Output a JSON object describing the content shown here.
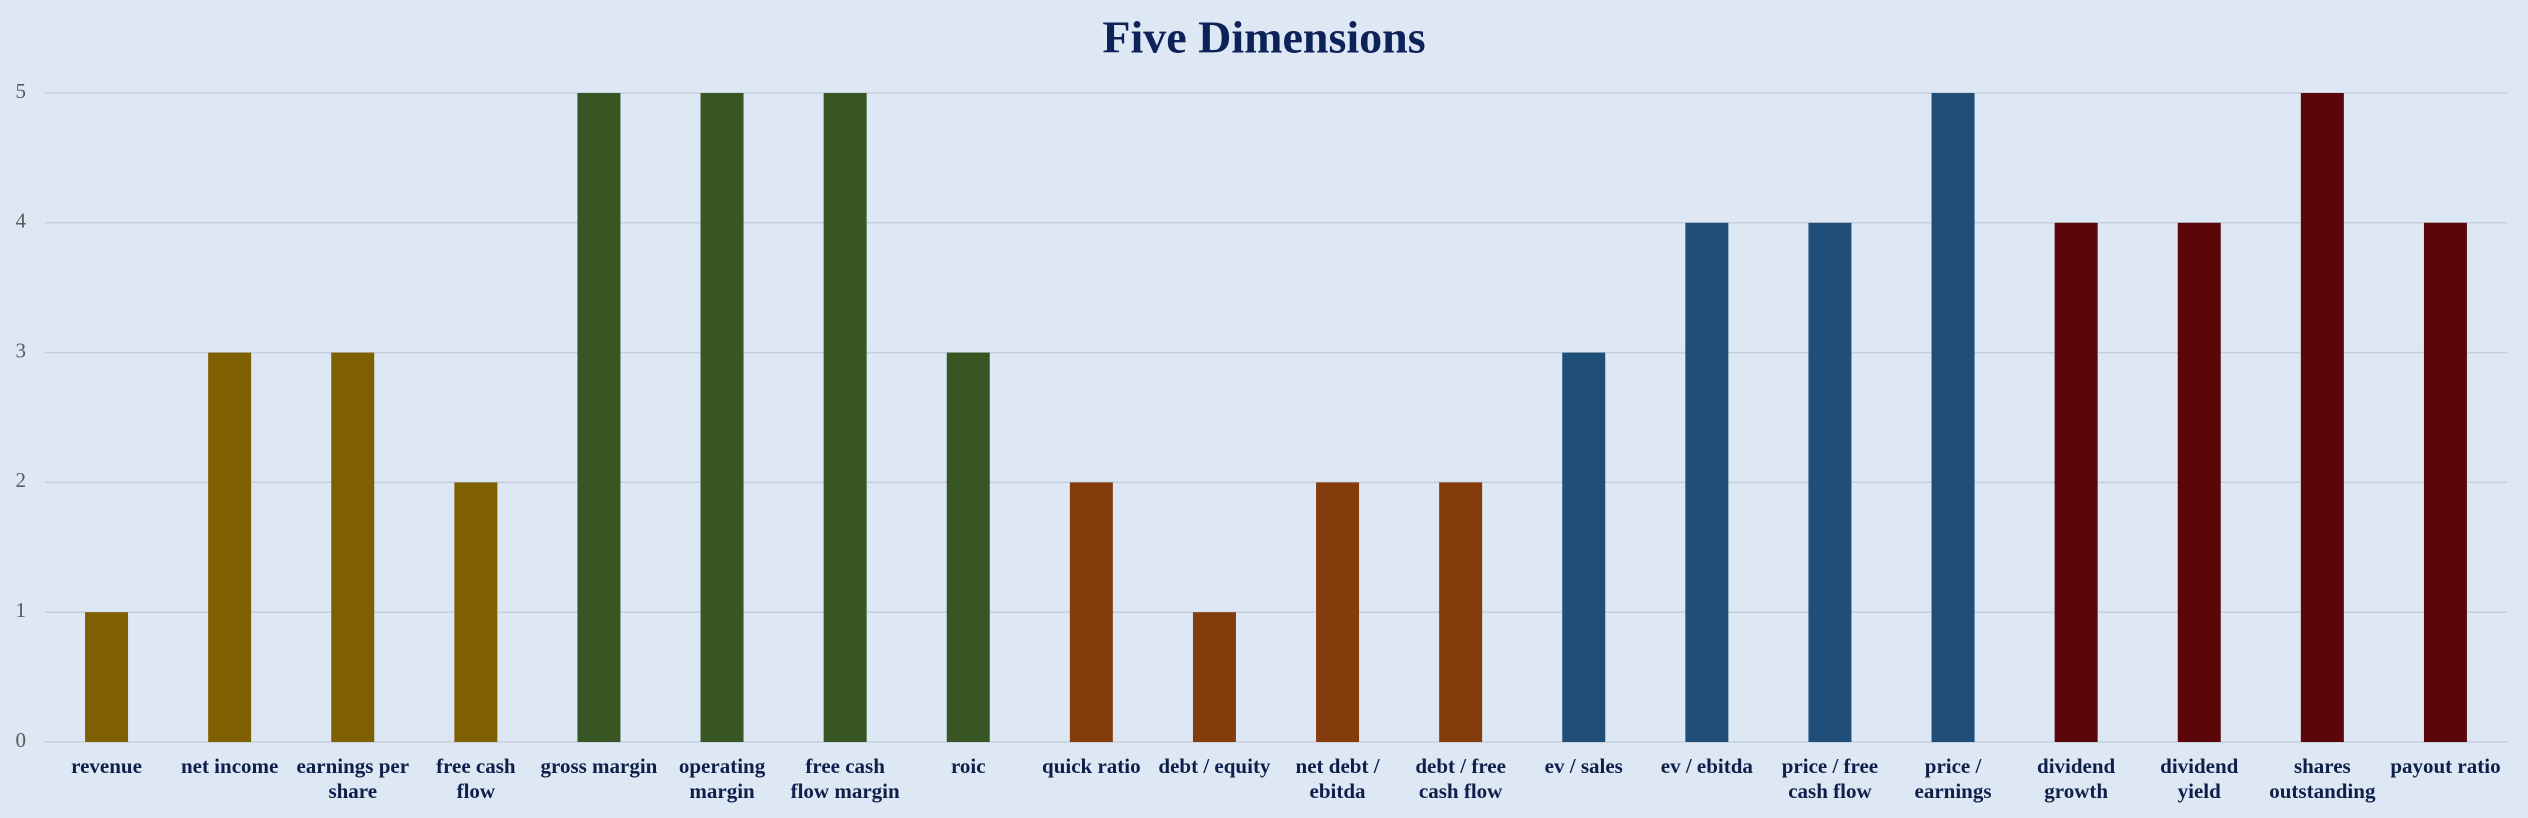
{
  "chart_data": {
    "type": "bar",
    "title": "Five Dimensions",
    "categories": [
      "revenue",
      "net income",
      "earnings per share",
      "free cash flow",
      "gross margin",
      "operating margin",
      "free cash flow margin",
      "roic",
      "quick ratio",
      "debt / equity",
      "net debt / ebitda",
      "debt / free cash flow",
      "ev / sales",
      "ev / ebitda",
      "price / free cash flow",
      "price / earnings",
      "dividend growth",
      "dividend yield",
      "shares outstanding",
      "payout ratio"
    ],
    "values": [
      1,
      3,
      3,
      2,
      5,
      5,
      5,
      3,
      2,
      1,
      2,
      2,
      3,
      4,
      4,
      5,
      4,
      4,
      5,
      4
    ],
    "colors": [
      "#7f6000",
      "#7f6000",
      "#7f6000",
      "#7f6000",
      "#375623",
      "#375623",
      "#375623",
      "#375623",
      "#843c0c",
      "#843c0c",
      "#843c0c",
      "#843c0c",
      "#1f4e79",
      "#1f4e79",
      "#1f4e79",
      "#1f4e79",
      "#5b0609",
      "#5b0609",
      "#5b0609",
      "#5b0609"
    ],
    "ylim": [
      0,
      5
    ],
    "yticks": [
      0,
      1,
      2,
      3,
      4,
      5
    ],
    "grid": true
  }
}
